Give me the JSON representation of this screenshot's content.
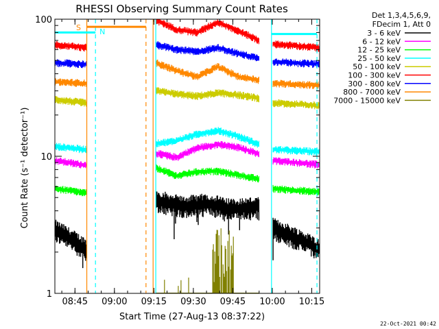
{
  "chart_data": {
    "type": "line",
    "title": "RHESSI Observing Summary Count Rates",
    "xlabel": "Start Time (27-Aug-13 08:37:22)",
    "ylabel": "Count Rate (s⁻¹ detector⁻¹)",
    "yscale": "log",
    "ylim": [
      1,
      100
    ],
    "xlim": [
      8.6228,
      10.3
    ],
    "yticks": [
      {
        "value": 1,
        "label": "1"
      },
      {
        "value": 10,
        "label": "10"
      },
      {
        "value": 100,
        "label": "100"
      }
    ],
    "xticks": [
      {
        "value": 8.75,
        "label": "08:45"
      },
      {
        "value": 9.0,
        "label": "09:00"
      },
      {
        "value": 9.25,
        "label": "09:15"
      },
      {
        "value": 9.5,
        "label": "09:30"
      },
      {
        "value": 9.75,
        "label": "09:45"
      },
      {
        "value": 10.0,
        "label": "10:00"
      },
      {
        "value": 10.25,
        "label": "10:15"
      }
    ],
    "legend": {
      "position": "top-right",
      "header": [
        "Det 1,3,4,5,6,9,",
        "FDecim 1, Att 0"
      ]
    },
    "series": [
      {
        "name": "3 - 6 keV",
        "color": "#000000",
        "segments": [
          {
            "t0": 8.625,
            "t1": 8.822,
            "values": [
              2.9,
              2.1
            ]
          },
          {
            "t0": 9.265,
            "t1": 9.915,
            "values": [
              4.8,
              4.3,
              4.5,
              4.1,
              4.3
            ]
          },
          {
            "t0": 10.005,
            "t1": 10.295,
            "values": [
              3.0,
              2.1
            ]
          }
        ]
      },
      {
        "name": "6 - 12 keV",
        "color": "#ff00ff",
        "segments": [
          {
            "t0": 8.625,
            "t1": 8.822,
            "values": [
              9.3,
              8.6
            ]
          },
          {
            "t0": 9.265,
            "t1": 9.915,
            "values": [
              10.5,
              9.8,
              11.5,
              12.2,
              11.6,
              10.4
            ]
          },
          {
            "t0": 10.005,
            "t1": 10.295,
            "values": [
              9.3,
              8.7
            ]
          }
        ]
      },
      {
        "name": "12 - 25 keV",
        "color": "#00ff00",
        "segments": [
          {
            "t0": 8.625,
            "t1": 8.822,
            "values": [
              5.8,
              5.4
            ]
          },
          {
            "t0": 9.265,
            "t1": 9.915,
            "values": [
              8.2,
              7.2,
              7.7,
              7.8,
              7.3,
              6.8
            ]
          },
          {
            "t0": 10.005,
            "t1": 10.295,
            "values": [
              5.8,
              5.5
            ]
          }
        ]
      },
      {
        "name": "25 - 50 keV",
        "color": "#00ffff",
        "segments": [
          {
            "t0": 8.625,
            "t1": 8.822,
            "values": [
              11.8,
              11.2
            ]
          },
          {
            "t0": 9.265,
            "t1": 9.915,
            "values": [
              12.4,
              13.0,
              14.5,
              15.4,
              14.0,
              12.2
            ]
          },
          {
            "t0": 10.005,
            "t1": 10.295,
            "values": [
              11.2,
              10.8
            ]
          }
        ]
      },
      {
        "name": "50 - 100 keV",
        "color": "#cccc00",
        "segments": [
          {
            "t0": 8.625,
            "t1": 8.822,
            "values": [
              26.0,
              24.5
            ]
          },
          {
            "t0": 9.265,
            "t1": 9.915,
            "values": [
              30.0,
              28.5,
              27.5,
              29.0,
              28.0,
              26.5
            ]
          },
          {
            "t0": 10.005,
            "t1": 10.295,
            "values": [
              24.5,
              23.5
            ]
          }
        ]
      },
      {
        "name": "100 - 300 keV",
        "color": "#ff0000",
        "segments": [
          {
            "t0": 8.625,
            "t1": 8.822,
            "values": [
              65.0,
              62.0
            ]
          },
          {
            "t0": 9.265,
            "t1": 9.915,
            "values": [
              98.0,
              84.0,
              80.0,
              95.0,
              82.0,
              70.0
            ]
          },
          {
            "t0": 10.005,
            "t1": 10.295,
            "values": [
              66.0,
              62.0
            ]
          }
        ]
      },
      {
        "name": "300 - 800 keV",
        "color": "#0000ff",
        "segments": [
          {
            "t0": 8.625,
            "t1": 8.822,
            "values": [
              48.0,
              47.0
            ]
          },
          {
            "t0": 9.265,
            "t1": 9.915,
            "values": [
              65.0,
              60.0,
              58.0,
              62.0,
              56.0,
              52.0
            ]
          },
          {
            "t0": 10.005,
            "t1": 10.295,
            "values": [
              49.0,
              47.0
            ]
          }
        ]
      },
      {
        "name": "800 - 7000 keV",
        "color": "#ff8800",
        "segments": [
          {
            "t0": 8.625,
            "t1": 8.822,
            "values": [
              35.0,
              34.0
            ]
          },
          {
            "t0": 9.265,
            "t1": 9.915,
            "values": [
              48.0,
              42.0,
              38.0,
              45.0,
              38.0,
              36.0
            ]
          },
          {
            "t0": 10.005,
            "t1": 10.295,
            "values": [
              34.0,
              33.0
            ]
          }
        ]
      },
      {
        "name": "7000 - 15000 keV",
        "color": "#808000",
        "segments": [
          {
            "t0": 9.265,
            "t1": 9.915,
            "values": [
              1.0,
              1.0
            ]
          }
        ]
      }
    ],
    "annotations": [
      {
        "type": "vline",
        "x": 8.825,
        "color": "#ff8800",
        "style": "solid",
        "label": "S"
      },
      {
        "type": "vline",
        "x": 8.88,
        "color": "#00ffff",
        "style": "dashed",
        "label": "N"
      },
      {
        "type": "vline",
        "x": 9.2,
        "color": "#ff8800",
        "style": "dashed",
        "label": ""
      },
      {
        "type": "vline",
        "x": 9.245,
        "color": "#ff8800",
        "style": "solid",
        "label": ""
      },
      {
        "type": "vline",
        "x": 9.262,
        "color": "#00ffff",
        "style": "solid",
        "label": ""
      },
      {
        "type": "vline",
        "x": 9.995,
        "color": "#00ffff",
        "style": "solid",
        "label": ""
      },
      {
        "type": "vline",
        "x": 10.283,
        "color": "#00ffff",
        "style": "dashed",
        "label": ""
      }
    ],
    "flags": [
      {
        "x0": 8.625,
        "x1": 8.88,
        "y": 80,
        "color": "#00ffff"
      },
      {
        "x0": 8.825,
        "x1": 9.2,
        "y": 88,
        "color": "#ff8800"
      },
      {
        "x0": 9.995,
        "x1": 10.283,
        "y": 78,
        "color": "#00ffff"
      }
    ],
    "footer_date": "22-Oct-2021 00:42"
  }
}
